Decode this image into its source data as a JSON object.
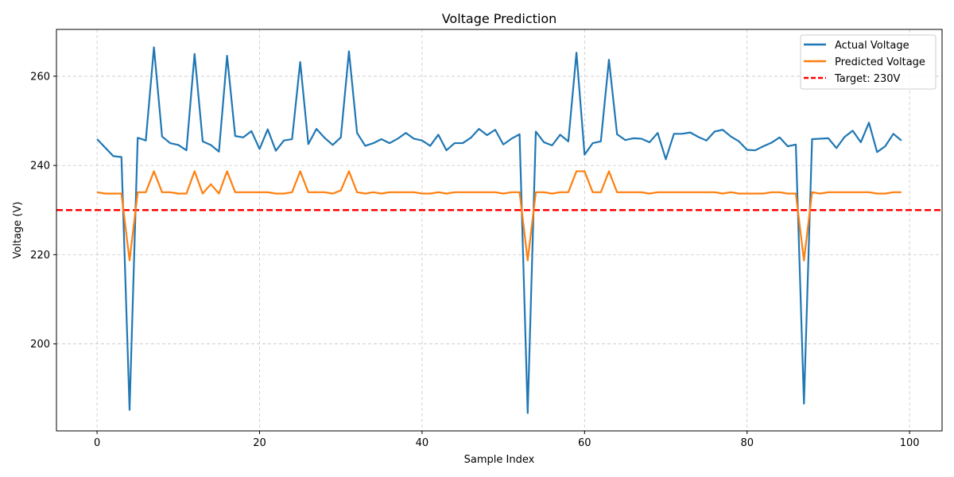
{
  "chart_data": {
    "type": "line",
    "title": "Voltage Prediction",
    "xlabel": "Sample Index",
    "ylabel": "Voltage (V)",
    "xlim": [
      -5,
      104
    ],
    "ylim": [
      180.5,
      270.5
    ],
    "xticks": [
      0,
      20,
      40,
      60,
      80,
      100
    ],
    "yticks": [
      200,
      220,
      240,
      260
    ],
    "grid": true,
    "legend_position": "top-right",
    "series": [
      {
        "name": "Actual Voltage",
        "color": "#1f77b4",
        "x": [
          0,
          1,
          2,
          3,
          4,
          5,
          6,
          7,
          8,
          9,
          10,
          11,
          12,
          13,
          14,
          15,
          16,
          17,
          18,
          19,
          20,
          21,
          22,
          23,
          24,
          25,
          26,
          27,
          28,
          29,
          30,
          31,
          32,
          33,
          34,
          35,
          36,
          37,
          38,
          39,
          40,
          41,
          42,
          43,
          44,
          45,
          46,
          47,
          48,
          49,
          50,
          51,
          52,
          53,
          54,
          55,
          56,
          57,
          58,
          59,
          60,
          61,
          62,
          63,
          64,
          65,
          66,
          67,
          68,
          69,
          70,
          71,
          72,
          73,
          74,
          75,
          76,
          77,
          78,
          79,
          80,
          81,
          82,
          83,
          84,
          85,
          86,
          87,
          88,
          89,
          90,
          91,
          92,
          93,
          94,
          95,
          96,
          97,
          98,
          99
        ],
        "values": [
          245.9,
          244.0,
          242.1,
          241.9,
          185.2,
          246.2,
          245.6,
          266.5,
          246.5,
          245.0,
          244.6,
          243.4,
          265.0,
          245.4,
          244.6,
          243.1,
          264.6,
          246.6,
          246.3,
          247.7,
          243.7,
          248.1,
          243.3,
          245.6,
          245.9,
          263.2,
          244.8,
          248.2,
          246.2,
          244.6,
          246.3,
          265.6,
          247.3,
          244.4,
          245.0,
          245.9,
          245.0,
          246.0,
          247.3,
          246.0,
          245.6,
          244.4,
          246.9,
          243.4,
          245.0,
          245.0,
          246.2,
          248.2,
          246.8,
          248.0,
          244.7,
          246.0,
          247.0,
          184.5,
          247.6,
          245.2,
          244.5,
          246.9,
          245.4,
          265.3,
          242.4,
          245.0,
          245.4,
          263.7,
          247.0,
          245.7,
          246.1,
          246.0,
          245.2,
          247.3,
          241.4,
          247.1,
          247.1,
          247.4,
          246.4,
          245.6,
          247.6,
          248.0,
          246.5,
          245.4,
          243.5,
          243.4,
          244.3,
          245.1,
          246.3,
          244.3,
          244.7,
          186.6,
          245.9,
          246.0,
          246.1,
          243.9,
          246.4,
          247.8,
          245.2,
          249.6,
          243.0,
          244.3,
          247.1,
          245.6
        ]
      },
      {
        "name": "Predicted Voltage",
        "color": "#ff7f0e",
        "x": [
          0,
          1,
          2,
          3,
          4,
          5,
          6,
          7,
          8,
          9,
          10,
          11,
          12,
          13,
          14,
          15,
          16,
          17,
          18,
          19,
          20,
          21,
          22,
          23,
          24,
          25,
          26,
          27,
          28,
          29,
          30,
          31,
          32,
          33,
          34,
          35,
          36,
          37,
          38,
          39,
          40,
          41,
          42,
          43,
          44,
          45,
          46,
          47,
          48,
          49,
          50,
          51,
          52,
          53,
          54,
          55,
          56,
          57,
          58,
          59,
          60,
          61,
          62,
          63,
          64,
          65,
          66,
          67,
          68,
          69,
          70,
          71,
          72,
          73,
          74,
          75,
          76,
          77,
          78,
          79,
          80,
          81,
          82,
          83,
          84,
          85,
          86,
          87,
          88,
          89,
          90,
          91,
          92,
          93,
          94,
          95,
          96,
          97,
          98,
          99
        ],
        "values": [
          234.0,
          233.7,
          233.7,
          233.7,
          218.7,
          234.0,
          234.0,
          238.7,
          234.0,
          234.0,
          233.7,
          233.7,
          238.7,
          233.7,
          235.8,
          233.7,
          238.7,
          234.0,
          234.0,
          234.0,
          234.0,
          234.0,
          233.7,
          233.7,
          234.0,
          238.7,
          234.0,
          234.0,
          234.0,
          233.7,
          234.4,
          238.7,
          234.0,
          233.7,
          234.0,
          233.7,
          234.0,
          234.0,
          234.0,
          234.0,
          233.7,
          233.7,
          234.0,
          233.7,
          234.0,
          234.0,
          234.0,
          234.0,
          234.0,
          234.0,
          233.7,
          234.0,
          234.0,
          218.7,
          234.0,
          234.0,
          233.7,
          234.0,
          234.0,
          238.7,
          238.7,
          234.0,
          234.0,
          238.7,
          234.0,
          234.0,
          234.0,
          234.0,
          233.7,
          234.0,
          234.0,
          234.0,
          234.0,
          234.0,
          234.0,
          234.0,
          234.0,
          233.7,
          234.0,
          233.7,
          233.7,
          233.7,
          233.7,
          234.0,
          234.0,
          233.7,
          233.7,
          218.7,
          234.0,
          233.7,
          234.0,
          234.0,
          234.0,
          234.0,
          234.0,
          234.0,
          233.7,
          233.7,
          234.0,
          234.0
        ]
      }
    ],
    "reference_line": {
      "name": "Target: 230V",
      "value": 230,
      "color": "#ff0000",
      "style": "dashed"
    }
  }
}
